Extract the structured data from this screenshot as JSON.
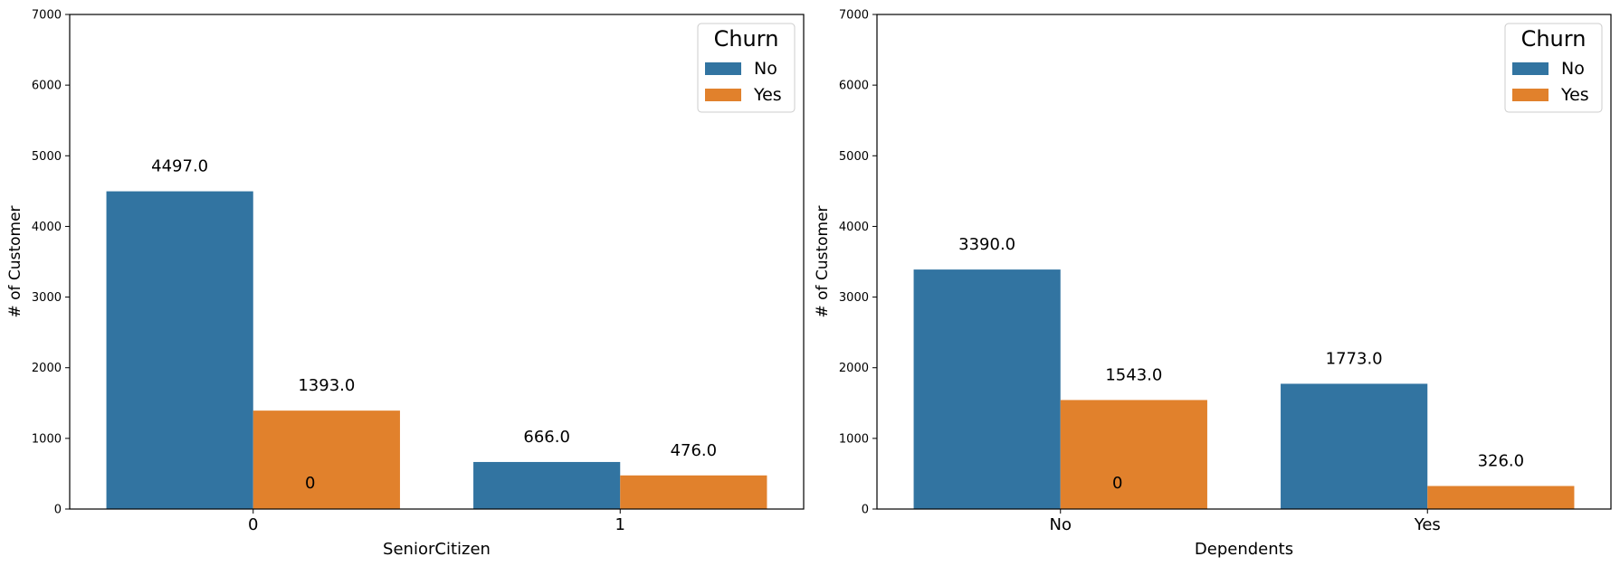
{
  "chart_data": [
    {
      "type": "bar",
      "xlabel": "SeniorCitizen",
      "ylabel": "# of Customer",
      "ylim": [
        0,
        7000
      ],
      "yticks": [
        0,
        1000,
        2000,
        3000,
        4000,
        5000,
        6000,
        7000
      ],
      "categories": [
        "0",
        "1"
      ],
      "series": [
        {
          "name": "No",
          "values": [
            4497,
            666
          ],
          "labels": [
            "4497.0",
            "666.0"
          ]
        },
        {
          "name": "Yes",
          "values": [
            1393,
            476
          ],
          "labels": [
            "1393.0",
            "476.0"
          ]
        }
      ],
      "extra_annotation": "0",
      "legend": {
        "title": "Churn",
        "position": "top-right"
      },
      "grid": false
    },
    {
      "type": "bar",
      "xlabel": "Dependents",
      "ylabel": "# of Customer",
      "ylim": [
        0,
        7000
      ],
      "yticks": [
        0,
        1000,
        2000,
        3000,
        4000,
        5000,
        6000,
        7000
      ],
      "categories": [
        "No",
        "Yes"
      ],
      "series": [
        {
          "name": "No",
          "values": [
            3390,
            1773
          ],
          "labels": [
            "3390.0",
            "1773.0"
          ]
        },
        {
          "name": "Yes",
          "values": [
            1543,
            326
          ],
          "labels": [
            "1543.0",
            "326.0"
          ]
        }
      ],
      "extra_annotation": "0",
      "legend": {
        "title": "Churn",
        "position": "top-right"
      },
      "grid": false
    }
  ],
  "colors": {
    "No": "#3274a1",
    "Yes": "#e1812c"
  }
}
